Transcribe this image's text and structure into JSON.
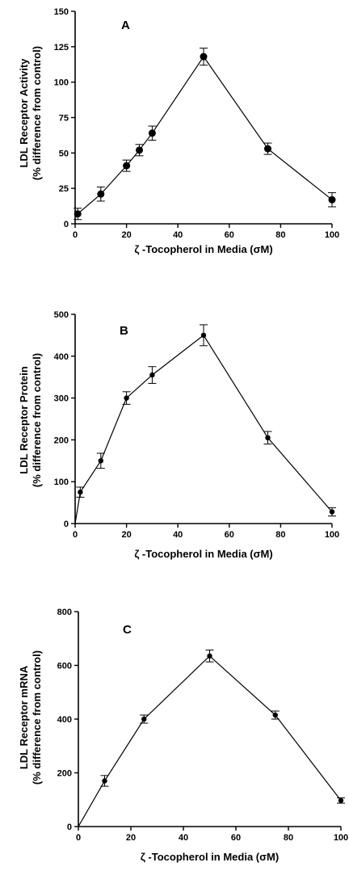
{
  "chart_data": [
    {
      "type": "line",
      "panel_label": "A",
      "xlabel": "ζ -Tocopherol in Media (σM)",
      "ylabel": "LDL Receptor Activity",
      "ylabel2": "(% difference from control)",
      "xlim": [
        0,
        100
      ],
      "ylim": [
        0,
        150
      ],
      "xticks": [
        "0",
        "20",
        "40",
        "60",
        "80",
        "100"
      ],
      "yticks": [
        "0",
        "25",
        "50",
        "75",
        "100",
        "125",
        "150"
      ],
      "x": [
        1,
        10,
        20,
        25,
        30,
        50,
        75,
        100
      ],
      "y": [
        7,
        21,
        41,
        52,
        64,
        118,
        53,
        17
      ],
      "err": [
        4,
        5,
        4,
        4,
        5,
        6,
        4,
        5
      ],
      "marker_size": "large"
    },
    {
      "type": "line",
      "panel_label": "B",
      "xlabel": "ζ -Tocopherol in Media (σM)",
      "ylabel": "LDL Receptor Protein",
      "ylabel2": "(% difference from control)",
      "xlim": [
        0,
        100
      ],
      "ylim": [
        0,
        500
      ],
      "xticks": [
        "0",
        "20",
        "40",
        "60",
        "80",
        "100"
      ],
      "yticks": [
        "0",
        "100",
        "200",
        "300",
        "400",
        "500"
      ],
      "x": [
        0,
        2,
        10,
        20,
        30,
        50,
        75,
        100
      ],
      "y": [
        0,
        75,
        150,
        300,
        355,
        450,
        205,
        28
      ],
      "err": [
        0,
        12,
        18,
        15,
        20,
        25,
        15,
        10
      ],
      "marker_size": "small"
    },
    {
      "type": "line",
      "panel_label": "C",
      "xlabel": "ζ -Tocopherol in Media (σM)",
      "ylabel": "LDL Receptor mRNA",
      "ylabel2": "(% difference from control)",
      "xlim": [
        0,
        100
      ],
      "ylim": [
        0,
        800
      ],
      "xticks": [
        "0",
        "20",
        "40",
        "60",
        "80",
        "100"
      ],
      "yticks": [
        "0",
        "200",
        "400",
        "600",
        "800"
      ],
      "x": [
        0,
        10,
        25,
        50,
        75,
        100
      ],
      "y": [
        0,
        170,
        400,
        635,
        415,
        97
      ],
      "err": [
        0,
        20,
        15,
        22,
        15,
        10
      ],
      "marker_size": "small"
    }
  ]
}
